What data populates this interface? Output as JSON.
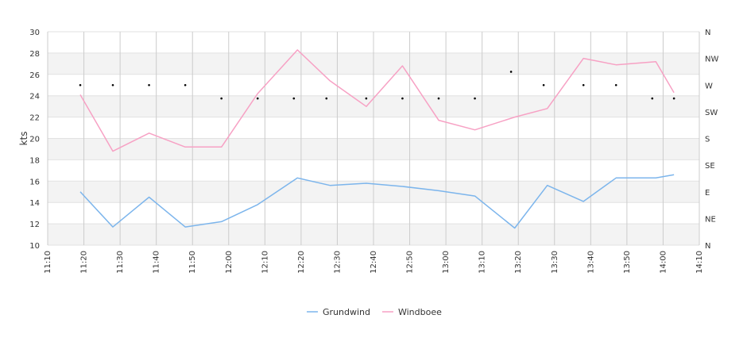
{
  "chart_data": {
    "type": "line",
    "ylabel": "kts",
    "ylim": [
      10,
      30
    ],
    "y_ticks": [
      "10",
      "12",
      "14",
      "16",
      "18",
      "20",
      "22",
      "24",
      "26",
      "28",
      "30"
    ],
    "x_ticks": [
      "11:10",
      "11:20",
      "11:30",
      "11:40",
      "11:50",
      "12:00",
      "12:10",
      "12:20",
      "12:30",
      "12:40",
      "12:50",
      "13:00",
      "13:10",
      "13:20",
      "13:30",
      "13:40",
      "13:50",
      "14:00",
      "14:10"
    ],
    "x_range_minutes": [
      670,
      850
    ],
    "right_axis_labels": [
      "N",
      "NE",
      "E",
      "SE",
      "S",
      "SW",
      "W",
      "NW",
      "N"
    ],
    "grid": true,
    "legend_position": "bottom-center",
    "colors": {
      "Grundwind": "#7cb5ec",
      "Windboee": "#f7a1c4",
      "direction": "#000000"
    },
    "series": [
      {
        "name": "Grundwind",
        "x": [
          "11:19",
          "11:28",
          "11:38",
          "11:48",
          "11:58",
          "12:08",
          "12:19",
          "12:28",
          "12:38",
          "12:48",
          "12:58",
          "13:08",
          "13:19",
          "13:28",
          "13:38",
          "13:47",
          "13:58",
          "14:03"
        ],
        "values": [
          15.0,
          11.7,
          14.5,
          11.7,
          12.2,
          13.8,
          16.3,
          15.6,
          15.8,
          15.5,
          15.1,
          14.6,
          11.6,
          15.6,
          14.1,
          16.3,
          16.3,
          16.6
        ]
      },
      {
        "name": "Windboee",
        "x": [
          "11:19",
          "11:28",
          "11:38",
          "11:48",
          "11:58",
          "12:08",
          "12:19",
          "12:28",
          "12:38",
          "12:48",
          "12:58",
          "13:08",
          "13:19",
          "13:28",
          "13:38",
          "13:47",
          "13:58",
          "14:03"
        ],
        "values": [
          24.1,
          18.8,
          20.5,
          19.2,
          19.2,
          24.2,
          28.3,
          25.4,
          23.0,
          26.8,
          21.7,
          20.8,
          22.0,
          22.8,
          27.5,
          26.9,
          27.2,
          24.3
        ]
      },
      {
        "type": "scatter",
        "x": [
          "11:19",
          "11:28",
          "11:38",
          "11:48",
          "11:58",
          "12:08",
          "12:18",
          "12:27",
          "12:38",
          "12:48",
          "12:58",
          "13:08",
          "13:18",
          "13:27",
          "13:38",
          "13:47",
          "13:57",
          "14:03"
        ],
        "values": [
          "W",
          "W",
          "W",
          "W",
          "WSW",
          "WSW",
          "WSW",
          "WSW",
          "WSW",
          "WSW",
          "WSW",
          "WSW",
          "WNW",
          "W",
          "W",
          "W",
          "WSW",
          "WSW"
        ]
      }
    ]
  }
}
